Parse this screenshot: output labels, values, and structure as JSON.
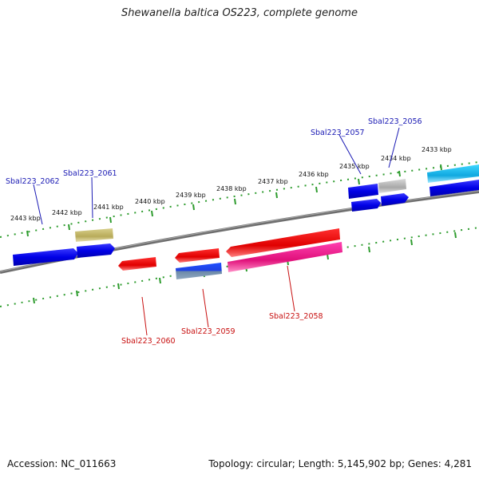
{
  "title": "Shewanella baltica OS223, complete genome",
  "footer": {
    "accession": "Accession: NC_011663",
    "summary": "Topology: circular; Length: 5,145,902 bp; Genes: 4,281"
  },
  "colors": {
    "forward_label": "#1a1ab4",
    "reverse_label": "#c81010",
    "backbone": "#7a7a7a",
    "ticks": "#2e9c2e"
  },
  "scale_labels": [
    "2443 kbp",
    "2442 kbp",
    "2441 kbp",
    "2440 kbp",
    "2439 kbp",
    "2438 kbp",
    "2437 kbp",
    "2436 kbp",
    "2435 kbp",
    "2434 kbp",
    "2433 kbp"
  ],
  "gene_labels": {
    "g2062": "Sbal223_2062",
    "g2061": "Sbal223_2061",
    "g2057": "Sbal223_2057",
    "g2056": "Sbal223_2056",
    "g2060": "Sbal223_2060",
    "g2059": "Sbal223_2059",
    "g2058": "Sbal223_2058"
  }
}
